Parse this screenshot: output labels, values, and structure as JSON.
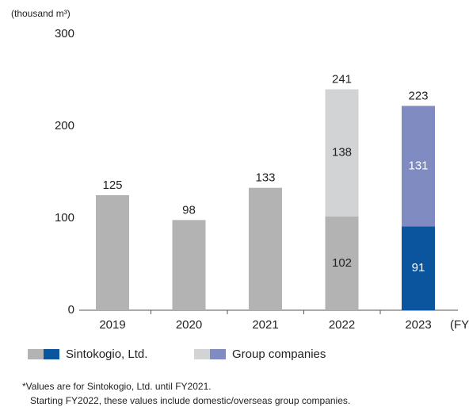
{
  "chart_data": {
    "type": "stacked_bar",
    "y_label": "(thousand m³)",
    "x_label": "(FY)",
    "categories": [
      "2019",
      "2020",
      "2021",
      "2022",
      "2023"
    ],
    "series": [
      {
        "name": "Sintokogio, Ltd.",
        "colors": [
          "#b3b3b3",
          "#b3b3b3",
          "#b3b3b3",
          "#b3b3b3",
          "#0b559f"
        ],
        "label_colors": [
          "#222222",
          "#222222",
          "#222222",
          "#222222",
          "#ffffff"
        ],
        "values": [
          125,
          98,
          133,
          102,
          91
        ]
      },
      {
        "name": "Group companies",
        "colors": [
          "#d2d3d5",
          "#d2d3d5",
          "#d2d3d5",
          "#d2d3d5",
          "#7f8bc1"
        ],
        "label_colors": [
          "#222222",
          "#222222",
          "#222222",
          "#222222",
          "#ffffff"
        ],
        "values": [
          null,
          null,
          null,
          138,
          131
        ]
      }
    ],
    "totals": [
      125,
      98,
      133,
      241,
      223
    ],
    "ylim": [
      0,
      300
    ],
    "yticks": [
      0,
      100,
      200,
      300
    ],
    "grid": false,
    "footnotes": [
      "*Values are for Sintokogio, Ltd. until FY2021.",
      "Starting FY2022, these values include domestic/overseas group companies."
    ]
  }
}
